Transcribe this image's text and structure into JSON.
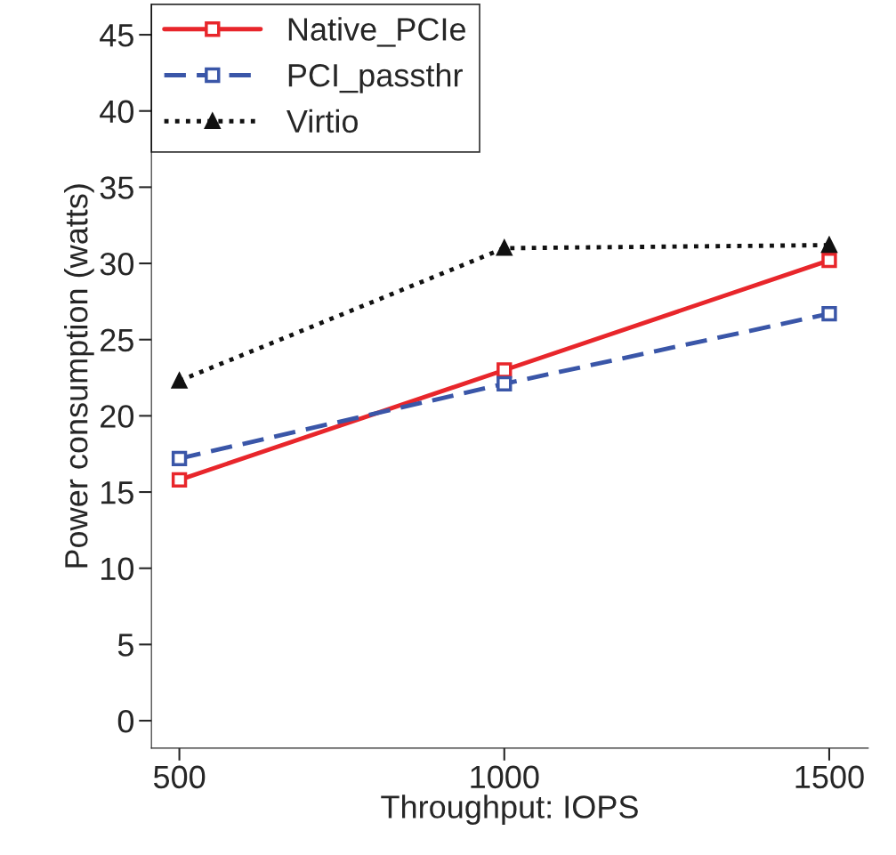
{
  "chart_data": {
    "type": "line",
    "xlabel": "Throughput: IOPS",
    "ylabel": "Power consumption (watts)",
    "x": [
      500,
      1000,
      1500
    ],
    "series": [
      {
        "name": "Native_PCIe",
        "color": "#e8262b",
        "values": [
          15.8,
          23.0,
          30.2
        ],
        "marker": "square",
        "line_style": "solid"
      },
      {
        "name": "PCI_passthr",
        "color": "#3a56a8",
        "values": [
          17.2,
          22.1,
          26.7
        ],
        "marker": "square",
        "line_style": "dashed"
      },
      {
        "name": "Virtio",
        "color": "#111111",
        "values": [
          22.3,
          31.0,
          31.2
        ],
        "marker": "triangle",
        "line_style": "dotted"
      }
    ],
    "xlim": [
      457,
      1560
    ],
    "ylim": [
      -1.8,
      47
    ],
    "xticks": [
      500,
      1000,
      1500
    ],
    "yticks": [
      0,
      5,
      10,
      15,
      20,
      25,
      30,
      35,
      40,
      45
    ],
    "grid": false,
    "legend": "top left"
  }
}
